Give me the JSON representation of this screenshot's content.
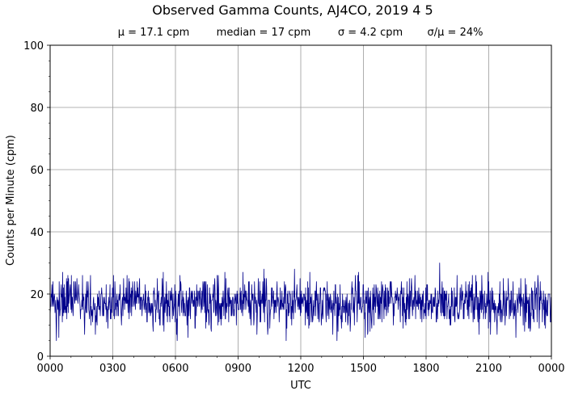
{
  "chart_data": {
    "type": "line",
    "title": "Observed Gamma Counts, AJ4CO, 2019 4 5",
    "stats": [
      "μ = 17.1 cpm",
      "median = 17 cpm",
      "σ = 4.2 cpm",
      "σ/μ = 24%"
    ],
    "xlabel": "UTC",
    "ylabel": "Counts per Minute (cpm)",
    "xlim": [
      0,
      1440
    ],
    "ylim": [
      0,
      100
    ],
    "x_ticks": [
      0,
      180,
      360,
      540,
      720,
      900,
      1080,
      1260,
      1440
    ],
    "x_tick_labels": [
      "0000",
      "0300",
      "0600",
      "0900",
      "1200",
      "1500",
      "1800",
      "2100",
      "0000"
    ],
    "y_ticks": [
      0,
      20,
      40,
      60,
      80,
      100
    ],
    "y_tick_labels": [
      "0",
      "20",
      "40",
      "60",
      "80",
      "100"
    ],
    "grid": true,
    "series": [
      {
        "color": "#00008b",
        "sampling": "one value per minute (1440 points)",
        "mean": 17.1,
        "median": 17,
        "std": 4.2,
        "min": 5,
        "max": 32,
        "x": [
          0,
          60,
          120,
          180,
          240,
          300,
          360,
          420,
          480,
          540,
          600,
          660,
          720,
          780,
          840,
          900,
          960,
          1020,
          1080,
          1140,
          1200,
          1260,
          1320,
          1380,
          1439
        ],
        "values": [
          17,
          18,
          16,
          17,
          18,
          17,
          16,
          17,
          17,
          18,
          17,
          17,
          18,
          17,
          16,
          17,
          17,
          18,
          16,
          17,
          18,
          17,
          17,
          16,
          17
        ]
      }
    ]
  }
}
